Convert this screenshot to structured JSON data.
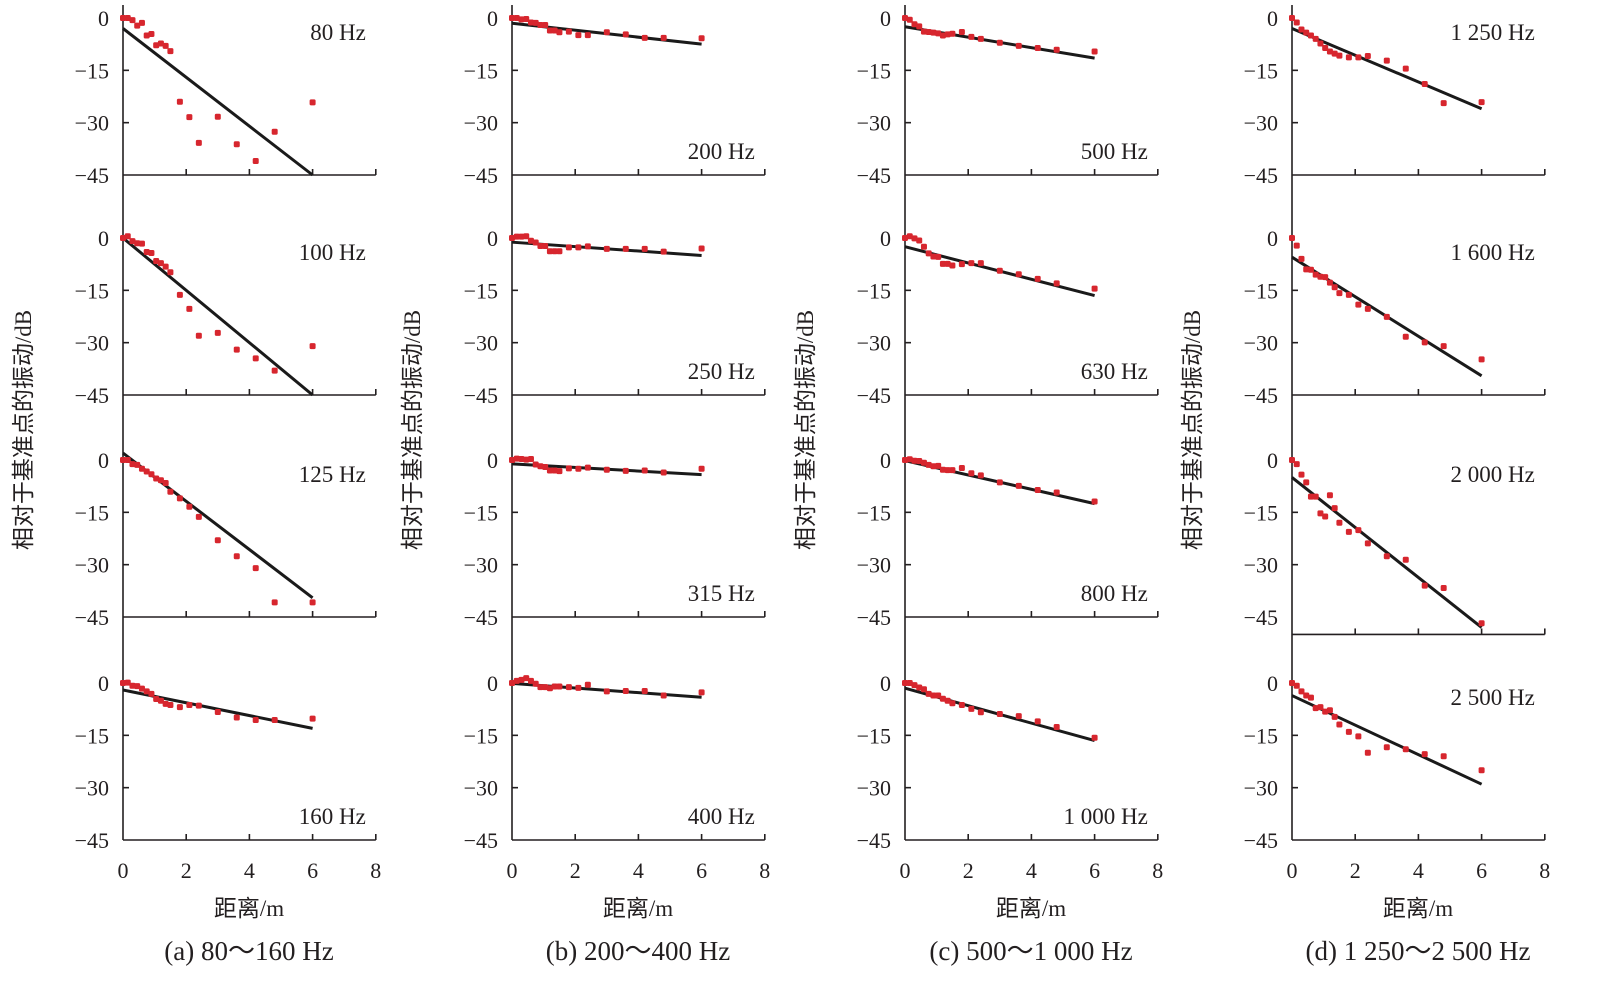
{
  "chart_data": {
    "type": "scatter",
    "title": "",
    "xlabel": "距离/m",
    "ylabel": "相对于基准点的振动/dB",
    "xlim": [
      0,
      8
    ],
    "xticks": [
      0,
      2,
      4,
      6,
      8
    ],
    "yticks": [
      0,
      -15,
      -30,
      -45
    ],
    "ylim": [
      -45,
      0
    ],
    "grid": false,
    "legend": "none",
    "marker_color": "#d7262e",
    "fit_color": "#1a1a1a",
    "x": [
      0,
      0.15,
      0.3,
      0.45,
      0.6,
      0.75,
      0.9,
      1.05,
      1.2,
      1.35,
      1.5,
      1.8,
      2.1,
      2.4,
      3.0,
      3.6,
      4.2,
      4.8,
      6.0
    ],
    "columns": [
      {
        "caption": "(a) 80～160 Hz",
        "panels": [
          {
            "label": "80 Hz",
            "label_pos": "top-right",
            "values": [
              0,
              0,
              -0.6,
              -2.2,
              -1.4,
              -5,
              -4.6,
              -7.8,
              -7.3,
              -8,
              -9.5,
              -24,
              -28.4,
              -35.8,
              -28.3,
              -36.2,
              -41,
              -32.6,
              -24.2
            ],
            "fit": [
              [
                0,
                -3
              ],
              [
                6,
                -45
              ]
            ]
          },
          {
            "label": "100 Hz",
            "label_pos": "top-right",
            "values": [
              0,
              0.5,
              -0.9,
              -1.5,
              -1.6,
              -4,
              -4.3,
              -6.6,
              -7.2,
              -8.2,
              -9.8,
              -16.3,
              -20.3,
              -28,
              -27.2,
              -32,
              -34.5,
              -38,
              -31
            ]
          },
          {
            "label": "125 Hz",
            "label_pos": "top-right",
            "values": [
              0,
              0,
              -1.2,
              -1.4,
              -2.5,
              -3.3,
              -4.1,
              -5.3,
              -5.8,
              -6.6,
              -9.1,
              -11,
              -13.4,
              -16.3,
              -23,
              -27.6,
              -31,
              -40.8,
              -40.8
            ]
          },
          {
            "label": "160 Hz",
            "label_pos": "bottom-right",
            "values": [
              0,
              0.1,
              -0.8,
              -0.9,
              -1.6,
              -2.4,
              -3.1,
              -4.6,
              -5.1,
              -6,
              -6.3,
              -6.9,
              -6.3,
              -6.5,
              -8.3,
              -9.9,
              -10.6,
              -10.6,
              -10.2
            ]
          }
        ],
        "fits": [
          [
            -3,
            -45
          ],
          [
            0,
            -45
          ],
          [
            2,
            -39.5
          ],
          [
            -2,
            -13
          ]
        ]
      },
      {
        "caption": "(b) 200～400 Hz",
        "panels": [
          {
            "label": "200 Hz",
            "label_pos": "bottom-right",
            "values": [
              0,
              0,
              -0.4,
              -0.3,
              -1.3,
              -1.4,
              -2,
              -2,
              -3.6,
              -3.6,
              -4.1,
              -3.9,
              -4.9,
              -4.9,
              -4.1,
              -4.7,
              -5.7,
              -5.7,
              -5.8
            ]
          },
          {
            "label": "250 Hz",
            "label_pos": "bottom-right",
            "values": [
              0,
              0.4,
              0.4,
              0.5,
              -0.8,
              -1.3,
              -2.3,
              -2.3,
              -3.8,
              -3.8,
              -3.8,
              -2.7,
              -2.7,
              -2.4,
              -3.1,
              -3.1,
              -3.1,
              -3.9,
              -3
            ]
          },
          {
            "label": "315 Hz",
            "label_pos": "bottom-right",
            "values": [
              0,
              0.4,
              0.3,
              0.1,
              0.3,
              -1.3,
              -1.8,
              -2,
              -3,
              -3,
              -3.2,
              -2.4,
              -2.5,
              -2.2,
              -2.8,
              -3.1,
              -3,
              -3.6,
              -2.5
            ]
          },
          {
            "label": "400 Hz",
            "label_pos": "bottom-right",
            "values": [
              0,
              0.6,
              0.9,
              1.4,
              0.6,
              -0.2,
              -1.2,
              -1.2,
              -1.5,
              -1,
              -1,
              -1.2,
              -1.4,
              -0.5,
              -2.4,
              -2.3,
              -2.3,
              -3.6,
              -2.7
            ]
          }
        ],
        "fits": [
          [
            -1.5,
            -7.5
          ],
          [
            -1.2,
            -5
          ],
          [
            -1.1,
            -4.2
          ],
          [
            -0.1,
            -4.1
          ]
        ]
      },
      {
        "caption": "(c) 500～1 000 Hz",
        "panels": [
          {
            "label": "500 Hz",
            "label_pos": "bottom-right",
            "values": [
              0,
              -0.5,
              -1.8,
              -2.4,
              -3.9,
              -4,
              -4.2,
              -4.4,
              -5,
              -4.7,
              -4.5,
              -4,
              -5.4,
              -6,
              -7.1,
              -8,
              -8.6,
              -9.1,
              -9.6
            ]
          },
          {
            "label": "630 Hz",
            "label_pos": "bottom-right",
            "values": [
              0,
              0.5,
              -0.1,
              -0.7,
              -2.5,
              -4.4,
              -5.3,
              -5.4,
              -7.4,
              -7.4,
              -7.9,
              -7.5,
              -7.2,
              -7.2,
              -9.4,
              -10.4,
              -11.7,
              -13,
              -14.5
            ]
          },
          {
            "label": "800 Hz",
            "label_pos": "bottom-right",
            "values": [
              0,
              0.2,
              -0.2,
              -0.3,
              -0.8,
              -1.4,
              -1.8,
              -1.7,
              -2.8,
              -2.9,
              -2.9,
              -2.3,
              -3.8,
              -4.4,
              -6.4,
              -7.4,
              -8.6,
              -9.3,
              -11.9
            ]
          },
          {
            "label": "1 000 Hz",
            "label_pos": "bottom-right",
            "values": [
              0,
              0,
              -0.6,
              -1.3,
              -1.8,
              -3.1,
              -3.6,
              -3.6,
              -4.5,
              -5.1,
              -5.8,
              -6.3,
              -7.4,
              -8.4,
              -8.9,
              -9.5,
              -11,
              -12.6,
              -15.7
            ]
          }
        ],
        "fits": [
          [
            -2.5,
            -11.5
          ],
          [
            -2.5,
            -16.5
          ],
          [
            -0.2,
            -12.5
          ],
          [
            -1.5,
            -16.5
          ]
        ]
      },
      {
        "caption": "(d) 1 250～2 500 Hz",
        "panels": [
          {
            "label": "1 250 Hz",
            "label_pos": "top-right",
            "values": [
              0,
              -1.3,
              -3.3,
              -4.2,
              -5,
              -6,
              -7.3,
              -8.6,
              -9.6,
              -10.2,
              -10.8,
              -11.3,
              -11.3,
              -10.9,
              -12.2,
              -14.5,
              -18.9,
              -24.4,
              -24.1
            ]
          },
          {
            "label": "1 600 Hz",
            "label_pos": "top-right",
            "values": [
              0,
              -2.2,
              -6,
              -9,
              -9.1,
              -10.5,
              -11.1,
              -11.2,
              -12.8,
              -14.1,
              -15.8,
              -16.3,
              -19.1,
              -20.3,
              -22.6,
              -28.3,
              -29.9,
              -31,
              -34.8
            ]
          },
          {
            "label": "2 000 Hz",
            "label_pos": "top-right",
            "values": [
              0,
              -1.2,
              -4.2,
              -6.4,
              -10.5,
              -10.5,
              -15.3,
              -16.2,
              -10.1,
              -13.8,
              -18,
              -20.6,
              -20.1,
              -23.9,
              -27.6,
              -28.6,
              -36,
              -36.7,
              -46.8
            ]
          },
          {
            "label": "2 500 Hz",
            "label_pos": "top-right",
            "values": [
              0,
              -0.8,
              -2.4,
              -3.6,
              -4.2,
              -7.2,
              -6.9,
              -8.2,
              -7.8,
              -9.7,
              -11.9,
              -14,
              -15.3,
              -20,
              -18.4,
              -19,
              -20.4,
              -21,
              -25
            ]
          }
        ],
        "fits": [
          [
            -3,
            -26
          ],
          [
            -5.5,
            -39.5
          ],
          [
            -5,
            -48
          ],
          [
            -3.6,
            -29
          ]
        ]
      }
    ]
  }
}
